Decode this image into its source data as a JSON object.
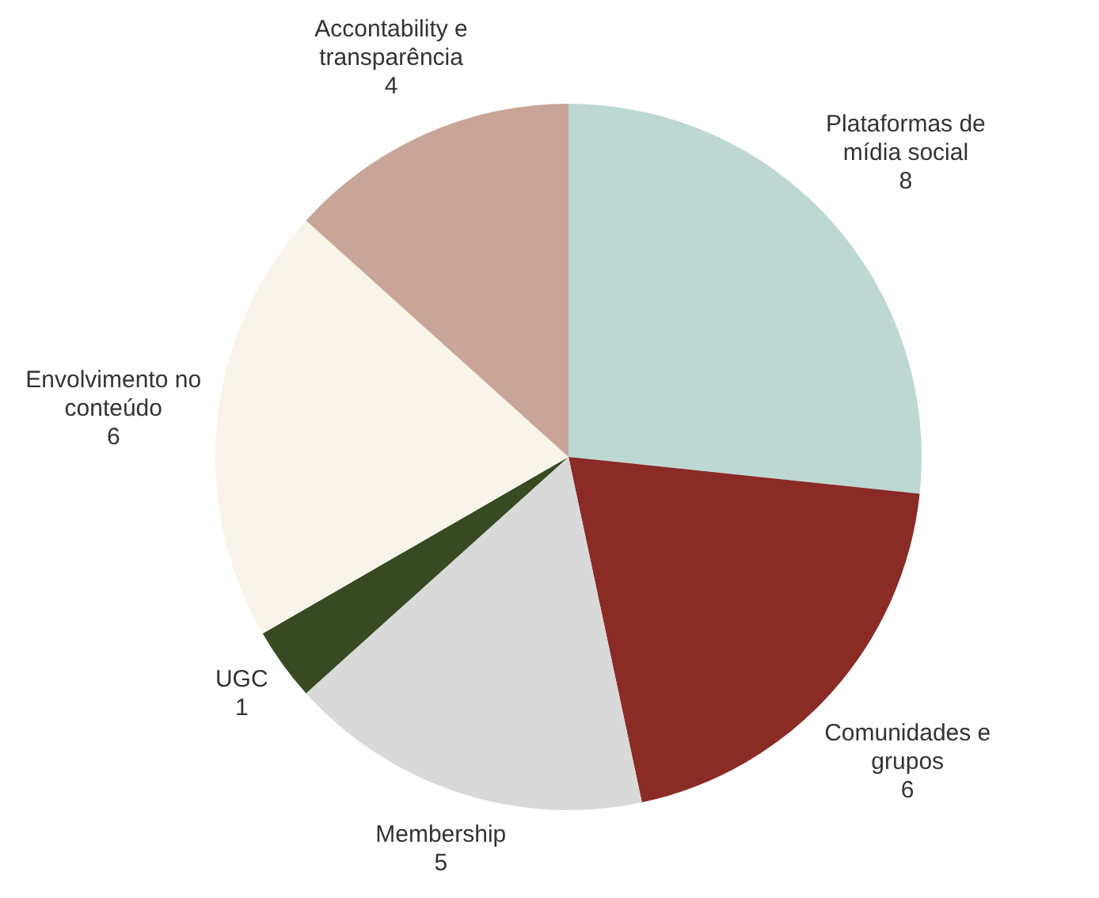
{
  "chart_data": {
    "type": "pie",
    "categories": [
      "Plataformas de mídia social",
      "Comunidades e grupos",
      "Membership",
      "UGC",
      "Envolvimento no conteúdo",
      "Accontability e transparência"
    ],
    "values": [
      8,
      6,
      5,
      1,
      6,
      4
    ],
    "colors": [
      "#bdd8d3",
      "#8a2b26",
      "#d9d9d9",
      "#374a22",
      "#f8f4ea",
      "#c9a597"
    ],
    "data_labels": true,
    "legend": false
  }
}
